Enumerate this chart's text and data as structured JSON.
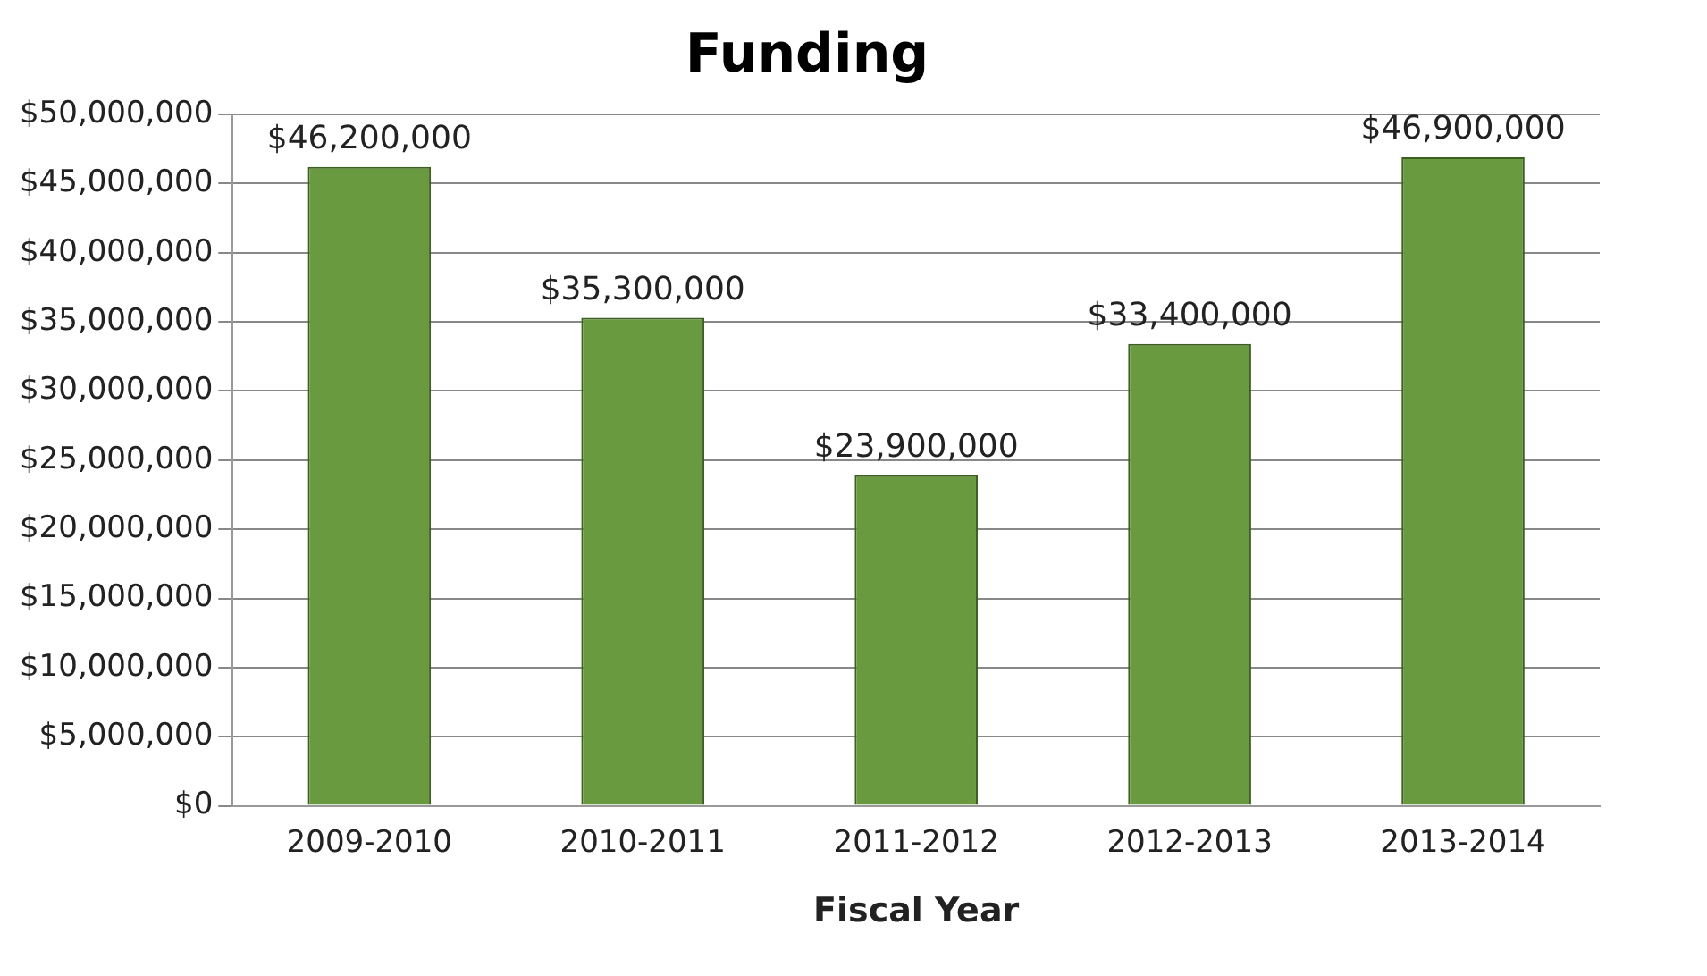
{
  "chart_data": {
    "type": "bar",
    "title": "Funding",
    "xlabel": "Fiscal Year",
    "categories": [
      "2009-2010",
      "2010-2011",
      "2011-2012",
      "2012-2013",
      "2013-2014"
    ],
    "values": [
      46200000,
      35300000,
      23900000,
      33400000,
      46900000
    ],
    "value_labels": [
      "$46,200,000",
      "$35,300,000",
      "$23,900,000",
      "$33,400,000",
      "$46,900,000"
    ],
    "color": "#6a9a3f",
    "ylim": [
      0,
      50000000
    ],
    "yticks": [
      {
        "value": 0,
        "label": "$0"
      },
      {
        "value": 5000000,
        "label": "$5,000,000"
      },
      {
        "value": 10000000,
        "label": "$10,000,000"
      },
      {
        "value": 15000000,
        "label": "$15,000,000"
      },
      {
        "value": 20000000,
        "label": "$20,000,000"
      },
      {
        "value": 25000000,
        "label": "$25,000,000"
      },
      {
        "value": 30000000,
        "label": "$30,000,000"
      },
      {
        "value": 35000000,
        "label": "$35,000,000"
      },
      {
        "value": 40000000,
        "label": "$40,000,000"
      },
      {
        "value": 45000000,
        "label": "$45,000,000"
      },
      {
        "value": 50000000,
        "label": "$50,000,000"
      }
    ],
    "grid": "y",
    "legend": false
  }
}
